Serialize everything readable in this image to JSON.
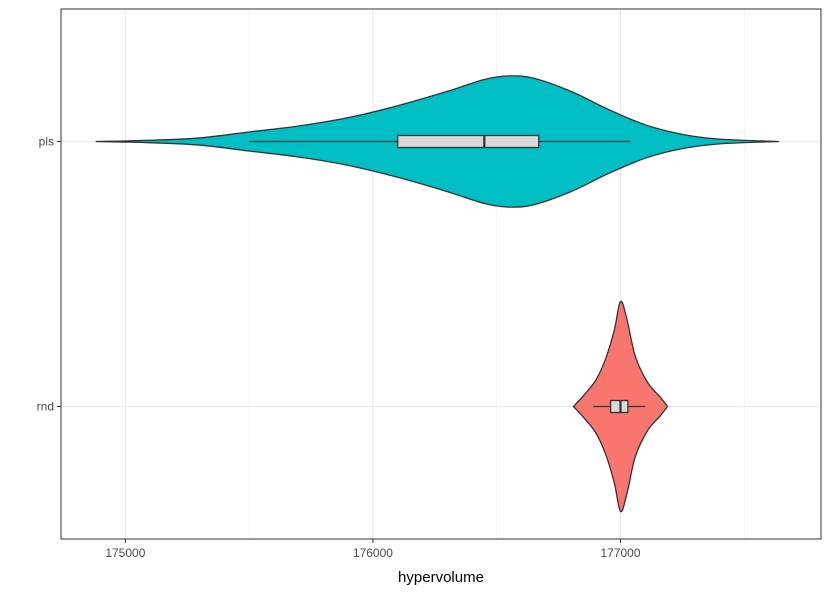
{
  "chart_data": {
    "type": "violin",
    "title": "",
    "xlabel": "hypervolume",
    "ylabel": "",
    "xlim": [
      174740,
      177810
    ],
    "x_ticks": [
      175000,
      176000,
      177000
    ],
    "x_tick_labels": [
      "175000",
      "176000",
      "177000"
    ],
    "categories": [
      "pls",
      "rnd"
    ],
    "grid": true,
    "legend": "none",
    "series": [
      {
        "category": "pls",
        "color": "#00BFC4",
        "min": 174880,
        "max": 177640,
        "box": {
          "whisker_low": 175500,
          "q1": 176100,
          "median": 176450,
          "q3": 176670,
          "whisker_high": 177040
        },
        "density": [
          [
            174880,
            0.0
          ],
          [
            175100,
            0.01
          ],
          [
            175300,
            0.03
          ],
          [
            175500,
            0.08
          ],
          [
            175700,
            0.13
          ],
          [
            175900,
            0.2
          ],
          [
            176100,
            0.3
          ],
          [
            176300,
            0.42
          ],
          [
            176450,
            0.52
          ],
          [
            176550,
            0.55
          ],
          [
            176650,
            0.53
          ],
          [
            176800,
            0.42
          ],
          [
            176950,
            0.27
          ],
          [
            177100,
            0.14
          ],
          [
            177250,
            0.06
          ],
          [
            177400,
            0.02
          ],
          [
            177640,
            0.0
          ]
        ]
      },
      {
        "category": "rnd",
        "color": "#F8766D",
        "min": 176810,
        "max": 177190,
        "box": {
          "whisker_low": 176890,
          "q1": 176960,
          "median": 177000,
          "q3": 177030,
          "whisker_high": 177100
        },
        "density": [
          [
            176810,
            0.0
          ],
          [
            176850,
            0.09
          ],
          [
            176900,
            0.22
          ],
          [
            176940,
            0.4
          ],
          [
            176975,
            0.64
          ],
          [
            177000,
            0.88
          ],
          [
            177025,
            0.74
          ],
          [
            177060,
            0.42
          ],
          [
            177110,
            0.2
          ],
          [
            177160,
            0.08
          ],
          [
            177190,
            0.0
          ]
        ]
      }
    ]
  }
}
